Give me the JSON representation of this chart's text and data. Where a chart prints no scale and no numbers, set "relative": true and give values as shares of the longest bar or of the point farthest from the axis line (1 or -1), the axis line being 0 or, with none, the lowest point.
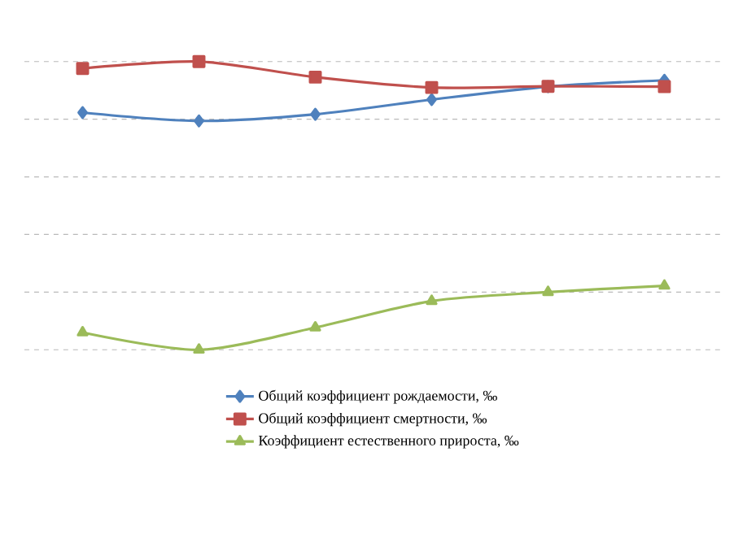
{
  "chart_data": {
    "type": "line",
    "relative": true,
    "categories": [
      null,
      null,
      null,
      null,
      null,
      null
    ],
    "grid": true,
    "legend": "bottom",
    "series": [
      {
        "name": "Общий коэффициент рождаемости, ‰",
        "color": "#4f81bd",
        "marker": "diamond",
        "values": [
          0.823,
          0.794,
          0.817,
          0.868,
          0.913,
          0.935
        ]
      },
      {
        "name": "Общий коэффициент смертности, ‰",
        "color": "#c0504d",
        "marker": "square",
        "values": [
          0.976,
          1,
          0.946,
          0.91,
          0.914,
          0.913
        ]
      },
      {
        "name": "Коэффициент естественного прироста, ‰",
        "color": "#9bbb59",
        "marker": "triangle",
        "values": [
          0.06,
          0,
          0.077,
          0.169,
          0.2,
          0.222
        ]
      }
    ]
  }
}
